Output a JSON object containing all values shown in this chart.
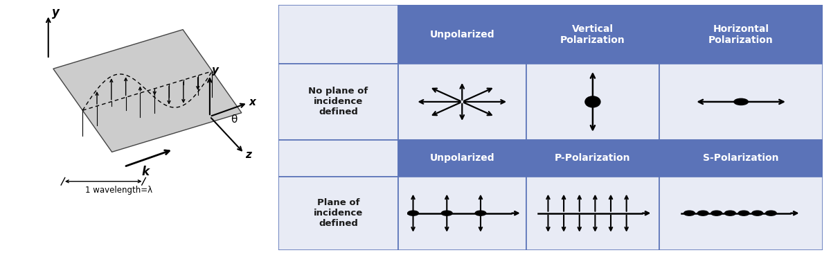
{
  "bg_color": "#ffffff",
  "table_header_color": "#5B73B8",
  "table_light_color": "#E8EBF5",
  "table_border_color": "#5B73B8",
  "header_text_color": "#ffffff",
  "cell_text_color": "#1a1a1a",
  "col_headers_row1": [
    "Unpolarized",
    "Vertical\nPolarization",
    "Horizontal\nPolarization"
  ],
  "col_headers_row2": [
    "Unpolarized",
    "P-Polarization",
    "S-Polarization"
  ],
  "row_label1": "No plane of\nincidence\ndefined",
  "row_label2": "Plane of\nincidence\ndefined"
}
